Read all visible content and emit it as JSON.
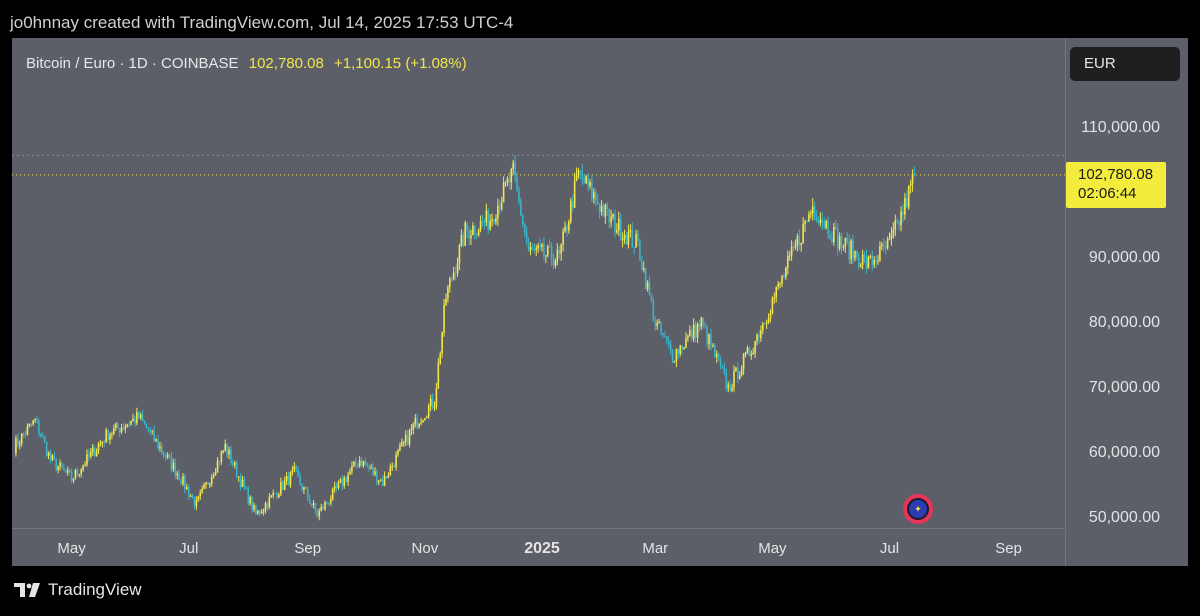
{
  "header": {
    "credit": "jo0hnnay created with TradingView.com, Jul 14, 2025 17:53 UTC-4"
  },
  "legend": {
    "symbol": "Bitcoin / Euro · 1D · COINBASE",
    "price": "102,780.08",
    "change": "+1,100.15 (+1.08%)"
  },
  "currency_button": "EUR",
  "price_tag": {
    "price": "102,780.08",
    "countdown": "02:06:44"
  },
  "footer": {
    "brand": "TradingView"
  },
  "colors": {
    "up": "#f2e64a",
    "down": "#3bb3c9",
    "background": "#5d5f68",
    "price_line": "#f4ec3d"
  },
  "chart_data": {
    "type": "candlestick",
    "title": "Bitcoin / Euro · 1D · COINBASE",
    "yaxis": {
      "ticks": [
        "50,000.00",
        "60,000.00",
        "70,000.00",
        "80,000.00",
        "90,000.00",
        "110,000.00"
      ],
      "range": [
        48000,
        119000
      ]
    },
    "xaxis": {
      "ticks": [
        "May",
        "Jul",
        "Sep",
        "Nov",
        "2025",
        "Mar",
        "May",
        "Jul",
        "Sep"
      ],
      "range": [
        "2024-04-01",
        "2025-09-30"
      ]
    },
    "last_price": 102780.08,
    "change": 1100.15,
    "change_pct": 1.08,
    "high_marker": 105800,
    "series_close_keypoints": [
      [
        "2024-04-01",
        61000
      ],
      [
        "2024-04-12",
        65000
      ],
      [
        "2024-04-20",
        59000
      ],
      [
        "2024-05-01",
        56000
      ],
      [
        "2024-05-20",
        63000
      ],
      [
        "2024-06-05",
        65500
      ],
      [
        "2024-06-25",
        57000
      ],
      [
        "2024-07-05",
        52000
      ],
      [
        "2024-07-20",
        61000
      ],
      [
        "2024-08-05",
        50500
      ],
      [
        "2024-08-25",
        57000
      ],
      [
        "2024-09-06",
        50500
      ],
      [
        "2024-09-28",
        59000
      ],
      [
        "2024-10-10",
        55500
      ],
      [
        "2024-10-28",
        65000
      ],
      [
        "2024-11-06",
        68000
      ],
      [
        "2024-11-12",
        84000
      ],
      [
        "2024-11-22",
        94000
      ],
      [
        "2024-12-05",
        96000
      ],
      [
        "2024-12-17",
        103000
      ],
      [
        "2024-12-25",
        91000
      ],
      [
        "2025-01-10",
        90000
      ],
      [
        "2025-01-20",
        103000
      ],
      [
        "2025-02-05",
        96000
      ],
      [
        "2025-02-20",
        92000
      ],
      [
        "2025-03-01",
        80000
      ],
      [
        "2025-03-10",
        75000
      ],
      [
        "2025-03-25",
        80000
      ],
      [
        "2025-04-08",
        70000
      ],
      [
        "2025-04-20",
        76000
      ],
      [
        "2025-05-05",
        86000
      ],
      [
        "2025-05-22",
        98000
      ],
      [
        "2025-06-05",
        92500
      ],
      [
        "2025-06-20",
        89000
      ],
      [
        "2025-07-01",
        92000
      ],
      [
        "2025-07-09",
        98000
      ],
      [
        "2025-07-14",
        102780
      ]
    ],
    "grid": false,
    "legend_position": "top-left"
  }
}
